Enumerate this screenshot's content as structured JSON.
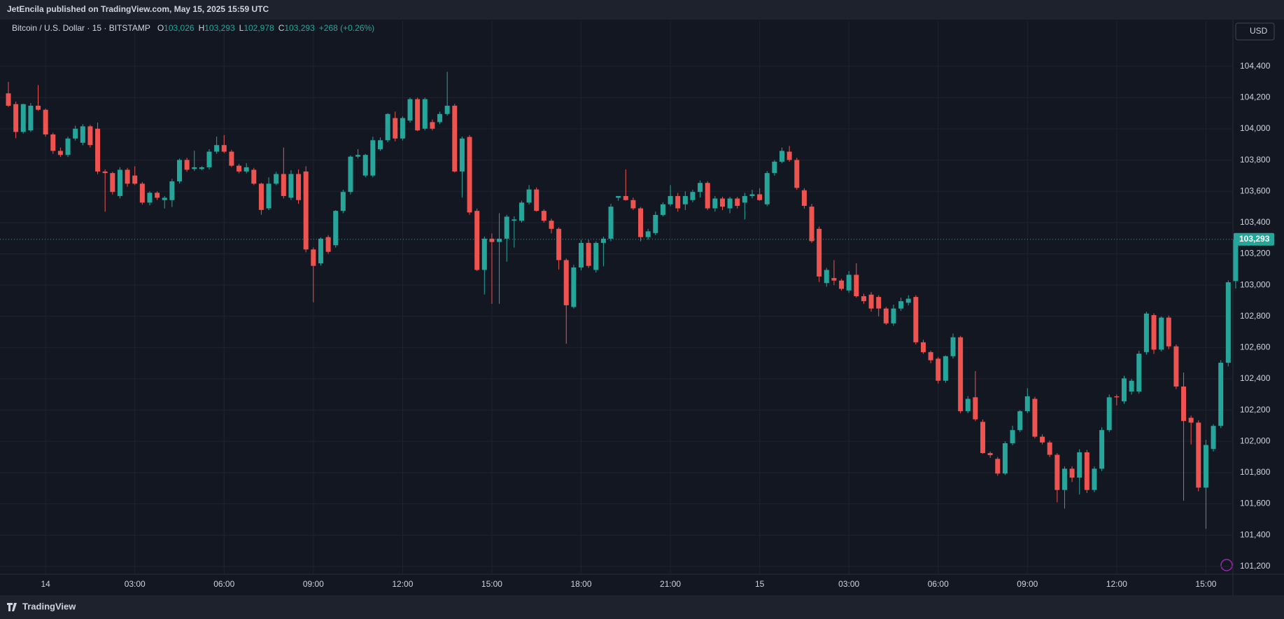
{
  "header": {
    "title": "JetEncila published on TradingView.com, May 15, 2025 15:59 UTC"
  },
  "footer": {
    "brand": "TradingView"
  },
  "chart_data": {
    "type": "candlestick",
    "symbol": "Bitcoin / U.S. Dollar · 15 · BITSTAMP",
    "legend": [
      {
        "key": "O",
        "value": "103,026"
      },
      {
        "key": "H",
        "value": "103,293"
      },
      {
        "key": "L",
        "value": "102,978"
      },
      {
        "key": "C",
        "value": "103,293"
      }
    ],
    "change": "+268 (+0.26%)",
    "currency": "USD",
    "up_color": "#26a69a",
    "down_color": "#ef5350",
    "grid": true,
    "last_price": {
      "value": 103293,
      "label": "103,293"
    },
    "ylim": [
      101150,
      104690
    ],
    "yticks": [
      {
        "value": 101200,
        "label": "101,200"
      },
      {
        "value": 101400,
        "label": "101,400"
      },
      {
        "value": 101600,
        "label": "101,600"
      },
      {
        "value": 101800,
        "label": "101,800"
      },
      {
        "value": 102000,
        "label": "102,000"
      },
      {
        "value": 102200,
        "label": "102,200"
      },
      {
        "value": 102400,
        "label": "102,400"
      },
      {
        "value": 102600,
        "label": "102,600"
      },
      {
        "value": 102800,
        "label": "102,800"
      },
      {
        "value": 103000,
        "label": "103,000"
      },
      {
        "value": 103200,
        "label": "103,200"
      },
      {
        "value": 103400,
        "label": "103,400"
      },
      {
        "value": 103600,
        "label": "103,600"
      },
      {
        "value": 103800,
        "label": "103,800"
      },
      {
        "value": 104000,
        "label": "104,000"
      },
      {
        "value": 104200,
        "label": "104,200"
      },
      {
        "value": 104400,
        "label": "104,400"
      }
    ],
    "xticks": [
      "14",
      "03:00",
      "06:00",
      "09:00",
      "12:00",
      "15:00",
      "18:00",
      "21:00",
      "15",
      "03:00",
      "06:00",
      "09:00",
      "12:00",
      "15:00"
    ],
    "ohlc": [
      [
        104227,
        104300,
        104140,
        104148
      ],
      [
        104158,
        104175,
        103940,
        103980
      ],
      [
        103980,
        104160,
        103970,
        104158
      ],
      [
        103990,
        104165,
        103980,
        104148
      ],
      [
        104148,
        104280,
        104115,
        104122
      ],
      [
        104122,
        104130,
        103950,
        103964
      ],
      [
        103964,
        103975,
        103840,
        103859
      ],
      [
        103859,
        103880,
        103820,
        103833
      ],
      [
        103833,
        103950,
        103820,
        103938
      ],
      [
        103938,
        104020,
        103925,
        104001
      ],
      [
        103911,
        104030,
        103895,
        104016
      ],
      [
        104016,
        104025,
        103880,
        103896
      ],
      [
        104001,
        104040,
        103710,
        103727
      ],
      [
        103727,
        103740,
        103470,
        103717
      ],
      [
        103717,
        103725,
        103580,
        103596
      ],
      [
        103570,
        103754,
        103555,
        103738
      ],
      [
        103738,
        103750,
        103630,
        103649
      ],
      [
        103701,
        103760,
        103640,
        103649
      ],
      [
        103649,
        103660,
        103515,
        103528
      ],
      [
        103528,
        103600,
        103510,
        103591
      ],
      [
        103591,
        103600,
        103545,
        103559
      ],
      [
        103544,
        103570,
        103490,
        103559
      ],
      [
        103544,
        103680,
        103500,
        103664
      ],
      [
        103664,
        103810,
        103650,
        103801
      ],
      [
        103801,
        103815,
        103725,
        103738
      ],
      [
        103743,
        103860,
        103730,
        103754
      ],
      [
        103743,
        103760,
        103735,
        103754
      ],
      [
        103754,
        103870,
        103740,
        103854
      ],
      [
        103854,
        103950,
        103840,
        103896
      ],
      [
        103896,
        103960,
        103845,
        103854
      ],
      [
        103854,
        103865,
        103755,
        103764
      ],
      [
        103764,
        103775,
        103715,
        103727
      ],
      [
        103727,
        103780,
        103715,
        103754
      ],
      [
        103738,
        103750,
        103640,
        103649
      ],
      [
        103649,
        103655,
        103450,
        103481
      ],
      [
        103491,
        103690,
        103480,
        103649
      ],
      [
        103649,
        103725,
        103640,
        103711
      ],
      [
        103711,
        103880,
        103555,
        103570
      ],
      [
        103559,
        103735,
        103545,
        103711
      ],
      [
        103711,
        103740,
        103520,
        103544
      ],
      [
        103727,
        103760,
        103210,
        103228
      ],
      [
        103228,
        103240,
        102890,
        103123
      ],
      [
        103139,
        103305,
        103125,
        103297
      ],
      [
        103307,
        103320,
        103200,
        103213
      ],
      [
        103255,
        103480,
        103240,
        103475
      ],
      [
        103475,
        103610,
        103460,
        103596
      ],
      [
        103596,
        103830,
        103580,
        103822
      ],
      [
        103822,
        103870,
        103810,
        103833
      ],
      [
        103701,
        103840,
        103690,
        103833
      ],
      [
        103701,
        103950,
        103690,
        103927
      ],
      [
        103869,
        103945,
        103860,
        103927
      ],
      [
        103927,
        104100,
        103915,
        104095
      ],
      [
        104069,
        104110,
        103920,
        103938
      ],
      [
        103938,
        104080,
        103925,
        104069
      ],
      [
        104053,
        104200,
        104040,
        104190
      ],
      [
        104190,
        104200,
        103985,
        103990
      ],
      [
        104001,
        104200,
        103990,
        104190
      ],
      [
        104043,
        104060,
        103990,
        104001
      ],
      [
        104043,
        104110,
        104030,
        104095
      ],
      [
        104095,
        104365,
        104085,
        104148
      ],
      [
        104148,
        104160,
        103720,
        103727
      ],
      [
        103727,
        103950,
        103560,
        103938
      ],
      [
        103948,
        103960,
        103450,
        103465
      ],
      [
        103475,
        103490,
        103090,
        103097
      ],
      [
        103097,
        103310,
        102940,
        103297
      ],
      [
        103297,
        103330,
        102880,
        103276
      ],
      [
        103276,
        103460,
        102880,
        103297
      ],
      [
        103297,
        103450,
        103150,
        103438
      ],
      [
        103412,
        103440,
        103240,
        103420
      ],
      [
        103412,
        103540,
        103400,
        103528
      ],
      [
        103528,
        103640,
        103515,
        103612
      ],
      [
        103612,
        103625,
        103470,
        103475
      ],
      [
        103475,
        103485,
        103400,
        103412
      ],
      [
        103412,
        103425,
        103330,
        103360
      ],
      [
        103360,
        103370,
        103100,
        103160
      ],
      [
        103160,
        103170,
        102625,
        102871
      ],
      [
        102860,
        103130,
        102850,
        103113
      ],
      [
        103113,
        103290,
        103095,
        103270
      ],
      [
        103270,
        103290,
        103110,
        103123
      ],
      [
        103097,
        103280,
        103080,
        103270
      ],
      [
        103270,
        103310,
        103120,
        103297
      ],
      [
        103297,
        103520,
        103280,
        103502
      ],
      [
        103559,
        103570,
        103540,
        103570
      ],
      [
        103570,
        103740,
        103540,
        103544
      ],
      [
        103544,
        103560,
        103480,
        103491
      ],
      [
        103491,
        103500,
        103280,
        103307
      ],
      [
        103307,
        103360,
        103290,
        103344
      ],
      [
        103333,
        103470,
        103320,
        103449
      ],
      [
        103449,
        103530,
        103440,
        103517
      ],
      [
        103517,
        103640,
        103505,
        103570
      ],
      [
        103570,
        103590,
        103470,
        103491
      ],
      [
        103517,
        103600,
        103480,
        103570
      ],
      [
        103544,
        103610,
        103530,
        103596
      ],
      [
        103596,
        103670,
        103560,
        103654
      ],
      [
        103654,
        103665,
        103480,
        103491
      ],
      [
        103491,
        103570,
        103470,
        103554
      ],
      [
        103554,
        103565,
        103480,
        103502
      ],
      [
        103491,
        103565,
        103460,
        103554
      ],
      [
        103554,
        103565,
        103490,
        103507
      ],
      [
        103528,
        103590,
        103420,
        103570
      ],
      [
        103570,
        103610,
        103555,
        103581
      ],
      [
        103581,
        103620,
        103540,
        103544
      ],
      [
        103517,
        103730,
        103505,
        103717
      ],
      [
        103717,
        103800,
        103700,
        103790
      ],
      [
        103790,
        103880,
        103780,
        103859
      ],
      [
        103854,
        103890,
        103790,
        103801
      ],
      [
        103801,
        103815,
        103610,
        103622
      ],
      [
        103607,
        103620,
        103490,
        103507
      ],
      [
        103502,
        103520,
        103270,
        103281
      ],
      [
        103360,
        103375,
        103020,
        103055
      ],
      [
        103013,
        103110,
        102990,
        103097
      ],
      [
        103045,
        103160,
        103000,
        103029
      ],
      [
        103029,
        103040,
        102965,
        102976
      ],
      [
        102966,
        103090,
        102950,
        103066
      ],
      [
        103066,
        103140,
        102920,
        102929
      ],
      [
        102929,
        102945,
        102880,
        102897
      ],
      [
        102939,
        102955,
        102830,
        102850
      ],
      [
        102924,
        102935,
        102800,
        102850
      ],
      [
        102850,
        102860,
        102745,
        102755
      ],
      [
        102755,
        102875,
        102740,
        102850
      ],
      [
        102850,
        102920,
        102835,
        102897
      ],
      [
        102887,
        102935,
        102870,
        102913
      ],
      [
        102924,
        102935,
        102620,
        102634
      ],
      [
        102634,
        102650,
        102560,
        102571
      ],
      [
        102571,
        102580,
        102500,
        102519
      ],
      [
        102529,
        102540,
        102370,
        102388
      ],
      [
        102388,
        102550,
        102375,
        102545
      ],
      [
        102545,
        102690,
        102530,
        102666
      ],
      [
        102666,
        102675,
        102180,
        102193
      ],
      [
        102193,
        102290,
        102180,
        102272
      ],
      [
        102282,
        102450,
        102130,
        102141
      ],
      [
        102125,
        102140,
        101920,
        101925
      ],
      [
        101925,
        101935,
        101895,
        101912
      ],
      [
        101888,
        101900,
        101780,
        101794
      ],
      [
        101794,
        102000,
        101785,
        101988
      ],
      [
        101988,
        102100,
        101975,
        102072
      ],
      [
        102072,
        102200,
        102060,
        102193
      ],
      [
        102193,
        102340,
        102180,
        102288
      ],
      [
        102272,
        102285,
        102020,
        102030
      ],
      [
        102030,
        102045,
        101980,
        101993
      ],
      [
        101993,
        102005,
        101900,
        101914
      ],
      [
        101914,
        101925,
        101610,
        101689
      ],
      [
        101689,
        101840,
        101570,
        101825
      ],
      [
        101825,
        101840,
        101740,
        101768
      ],
      [
        101768,
        101950,
        101660,
        101930
      ],
      [
        101930,
        101945,
        101670,
        101689
      ],
      [
        101689,
        101840,
        101675,
        101825
      ],
      [
        101825,
        102090,
        101810,
        102072
      ],
      [
        102072,
        102300,
        102060,
        102282
      ],
      [
        102288,
        102300,
        102230,
        102282
      ],
      [
        102256,
        102420,
        102240,
        102403
      ],
      [
        102319,
        102400,
        102300,
        102388
      ],
      [
        102319,
        102580,
        102305,
        102561
      ],
      [
        102571,
        102830,
        102555,
        102818
      ],
      [
        102808,
        102820,
        102560,
        102587
      ],
      [
        102587,
        102800,
        102575,
        102792
      ],
      [
        102792,
        102805,
        102590,
        102608
      ],
      [
        102608,
        102620,
        102335,
        102351
      ],
      [
        102351,
        102440,
        101620,
        102130
      ],
      [
        102151,
        102165,
        101980,
        102120
      ],
      [
        102120,
        102135,
        101680,
        101704
      ],
      [
        101704,
        102010,
        101440,
        101977
      ],
      [
        101951,
        102110,
        101935,
        102099
      ],
      [
        102099,
        102520,
        102085,
        102503
      ],
      [
        102503,
        103030,
        102480,
        103018
      ],
      [
        103026,
        103293,
        102978,
        103293
      ]
    ]
  }
}
